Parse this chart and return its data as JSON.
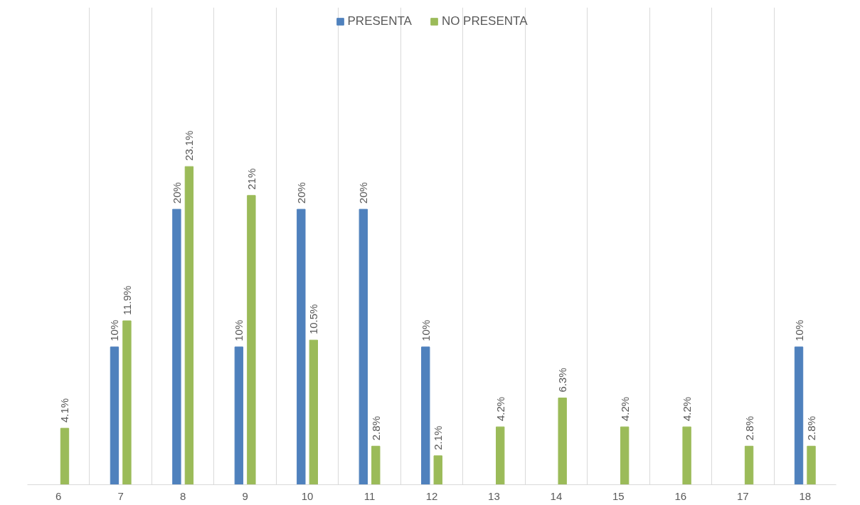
{
  "chart_data": {
    "type": "bar",
    "categories": [
      "6",
      "7",
      "8",
      "9",
      "10",
      "11",
      "12",
      "13",
      "14",
      "15",
      "16",
      "17",
      "18"
    ],
    "series": [
      {
        "name": "PRESENTA",
        "color": "#4f81bd",
        "values": [
          null,
          10,
          20,
          10,
          20,
          20,
          10,
          null,
          null,
          null,
          null,
          null,
          10
        ],
        "value_labels": [
          null,
          "10%",
          "20%",
          "10%",
          "20%",
          "20%",
          "10%",
          null,
          null,
          null,
          null,
          null,
          "10%"
        ]
      },
      {
        "name": "NO PRESENTA",
        "color": "#9bbb59",
        "values": [
          4.1,
          11.9,
          23.1,
          21,
          10.5,
          2.8,
          2.1,
          4.2,
          6.3,
          4.2,
          4.2,
          2.8,
          2.8
        ],
        "value_labels": [
          "4.1%",
          "11.9%",
          "23.1%",
          "21%",
          "10.5%",
          "2.8%",
          "2.1%",
          "4.2%",
          "6.3%",
          "4.2%",
          "4.2%",
          "2.8%",
          "2.8%"
        ]
      }
    ],
    "grid": "x",
    "legend": "top"
  }
}
